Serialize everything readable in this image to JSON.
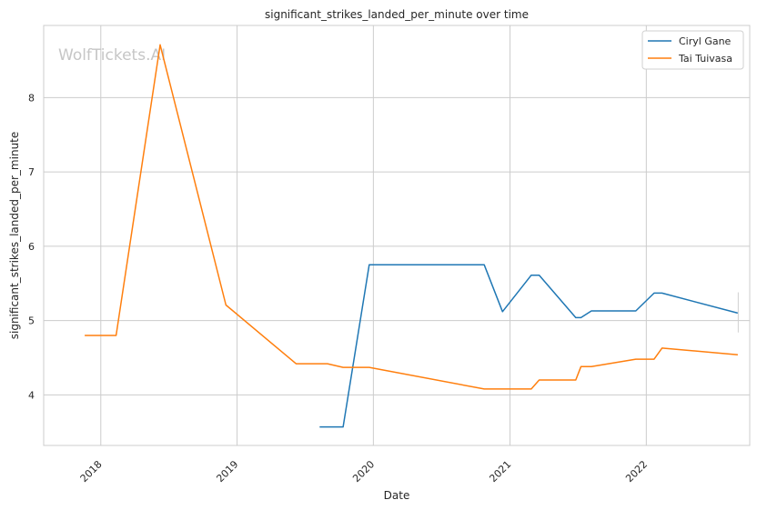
{
  "chart_data": {
    "type": "line",
    "title": "significant_strikes_landed_per_minute over time",
    "xlabel": "Date",
    "ylabel": "significant_strikes_landed_per_minute",
    "watermark": "WolfTickets.AI",
    "x_ticks": [
      "2018",
      "2019",
      "2020",
      "2021",
      "2022"
    ],
    "y_ticks": [
      4,
      5,
      6,
      7,
      8
    ],
    "xlim": [
      "2017-08-01",
      "2022-10-05"
    ],
    "ylim": [
      3.32,
      8.97
    ],
    "grid": true,
    "legend_position": "upper right",
    "series": [
      {
        "name": "Ciryl Gane",
        "color": "#1f77b4",
        "points": [
          [
            "2019-08-10",
            3.57
          ],
          [
            "2019-10-12",
            3.57
          ],
          [
            "2019-12-21",
            5.75
          ],
          [
            "2020-10-24",
            5.75
          ],
          [
            "2020-12-12",
            5.12
          ],
          [
            "2021-02-27",
            5.61
          ],
          [
            "2021-03-20",
            5.61
          ],
          [
            "2021-06-26",
            5.04
          ],
          [
            "2021-07-10",
            5.04
          ],
          [
            "2021-08-07",
            5.13
          ],
          [
            "2021-12-04",
            5.13
          ],
          [
            "2022-01-22",
            5.37
          ],
          [
            "2022-02-12",
            5.37
          ],
          [
            "2022-09-03",
            5.1
          ]
        ]
      },
      {
        "name": "Tai Tuivasa",
        "color": "#ff7f0e",
        "points": [
          [
            "2017-11-19",
            4.8
          ],
          [
            "2018-02-11",
            4.8
          ],
          [
            "2018-06-09",
            8.71
          ],
          [
            "2018-12-02",
            5.21
          ],
          [
            "2019-06-08",
            4.42
          ],
          [
            "2019-08-31",
            4.42
          ],
          [
            "2019-10-12",
            4.37
          ],
          [
            "2019-12-21",
            4.37
          ],
          [
            "2020-10-24",
            4.08
          ],
          [
            "2021-02-27",
            4.08
          ],
          [
            "2021-03-20",
            4.2
          ],
          [
            "2021-06-26",
            4.2
          ],
          [
            "2021-07-10",
            4.38
          ],
          [
            "2021-08-07",
            4.38
          ],
          [
            "2021-12-04",
            4.48
          ],
          [
            "2022-01-22",
            4.48
          ],
          [
            "2022-02-12",
            4.63
          ],
          [
            "2022-09-03",
            4.54
          ]
        ]
      }
    ]
  }
}
